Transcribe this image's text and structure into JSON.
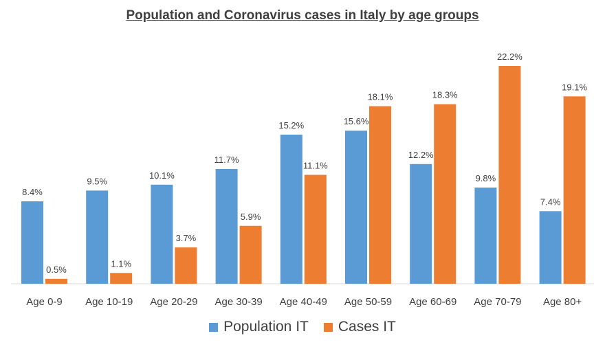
{
  "chart_data": {
    "type": "bar",
    "title": "Population and Coronavirus cases in Italy by age groups",
    "categories": [
      "Age 0-9",
      "Age 10-19",
      "Age 20-29",
      "Age 30-39",
      "Age 40-49",
      "Age 50-59",
      "Age 60-69",
      "Age 70-79",
      "Age 80+"
    ],
    "series": [
      {
        "name": "Population IT",
        "color": "#5B9BD5",
        "values": [
          8.4,
          9.5,
          10.1,
          11.7,
          15.2,
          15.6,
          12.2,
          9.8,
          7.4
        ],
        "labels": [
          "8.4%",
          "9.5%",
          "10.1%",
          "11.7%",
          "15.2%",
          "15.6%",
          "12.2%",
          "9.8%",
          "7.4%"
        ]
      },
      {
        "name": "Cases IT",
        "color": "#ED7D31",
        "values": [
          0.5,
          1.1,
          3.7,
          5.9,
          11.1,
          18.1,
          18.3,
          22.2,
          19.1
        ],
        "labels": [
          "0.5%",
          "1.1%",
          "3.7%",
          "5.9%",
          "11.1%",
          "18.1%",
          "18.3%",
          "22.2%",
          "19.1%"
        ]
      }
    ],
    "ylim": [
      0,
      22.2
    ],
    "grid": false,
    "legend_position": "bottom"
  }
}
